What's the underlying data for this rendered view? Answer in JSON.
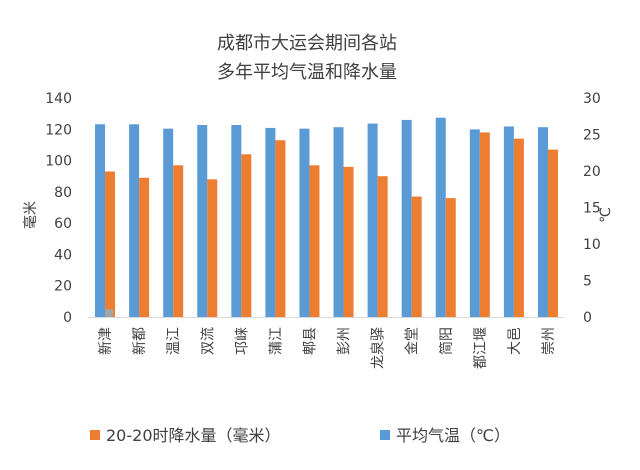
{
  "chart_data": {
    "type": "bar",
    "title": [
      "成都市大运会期间各站",
      "多年平均气温和降水量"
    ],
    "categories": [
      "新津",
      "新都",
      "温江",
      "双流",
      "邛崃",
      "蒲江",
      "郫县",
      "彭州",
      "龙泉驿",
      "金堂",
      "简阳",
      "都江堰",
      "大邑",
      "崇州"
    ],
    "series": [
      {
        "name": "20-20时降水量（毫米）",
        "axis": "left",
        "color": "#ed7d31",
        "values": [
          93,
          89,
          97,
          88,
          104,
          113,
          97,
          96,
          90,
          77,
          76,
          118,
          114,
          107
        ]
      },
      {
        "name": "平均气温（℃）",
        "axis": "right",
        "color": "#5b9bd5",
        "values": [
          26.4,
          26.4,
          25.8,
          26.3,
          26.3,
          25.9,
          25.8,
          26.0,
          26.5,
          27.0,
          27.3,
          25.7,
          26.1,
          26.0
        ]
      }
    ],
    "stray_mark": {
      "category": "新津",
      "value": 5,
      "color": "#a5a5a5"
    },
    "ylabel_left": "毫米",
    "ylabel_right": "℃",
    "ylim_left": [
      0,
      140
    ],
    "ylim_right": [
      0,
      30
    ],
    "yticks_left": [
      "0",
      "20",
      "40",
      "60",
      "80",
      "100",
      "120",
      "140"
    ],
    "yticks_right": [
      "0",
      "5",
      "10",
      "15",
      "20",
      "25",
      "30"
    ],
    "grid": false,
    "legend_position": "bottom"
  }
}
